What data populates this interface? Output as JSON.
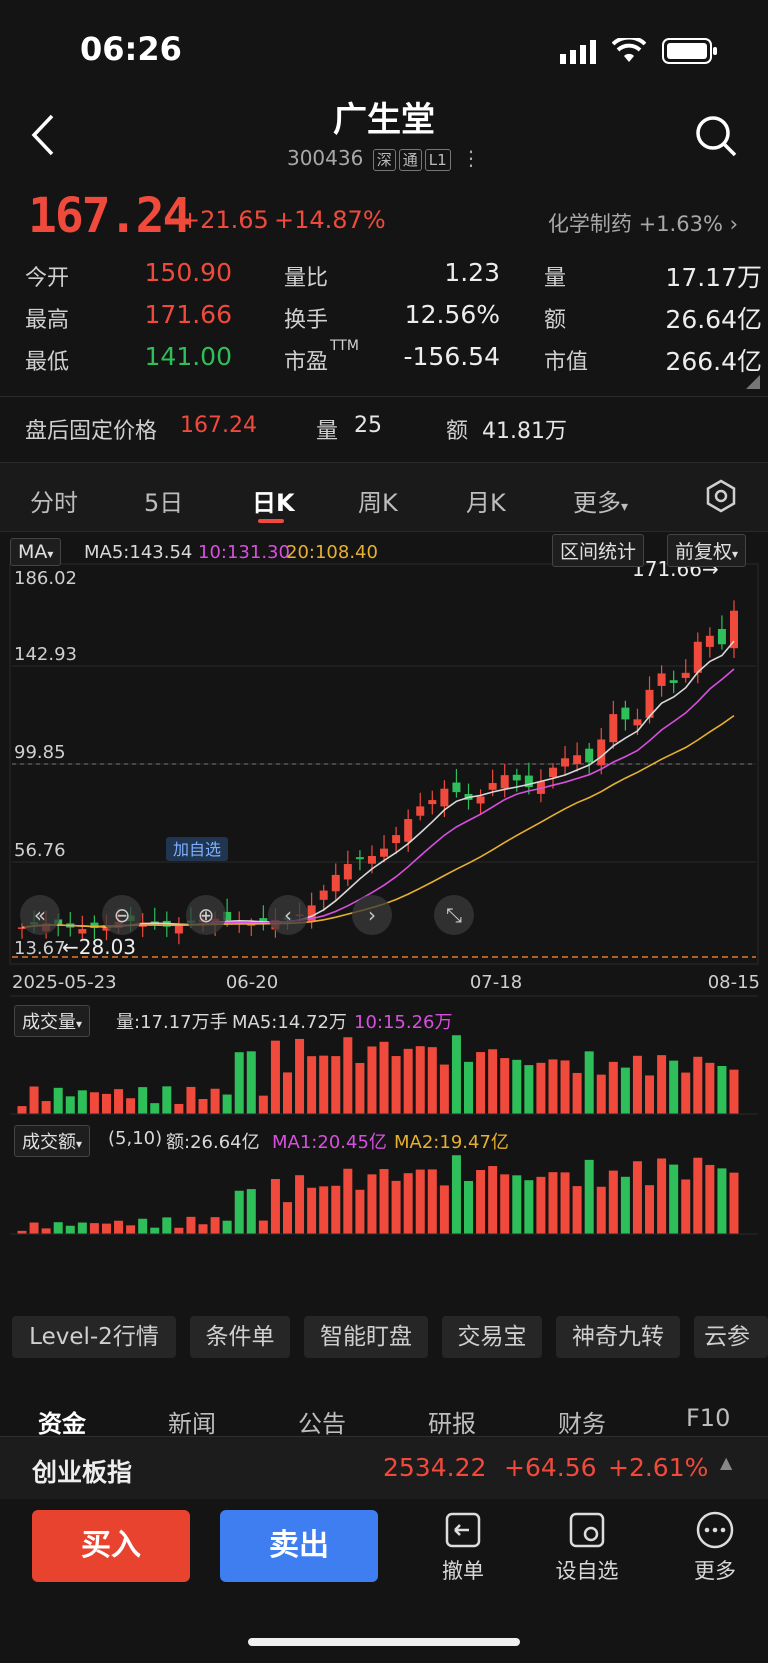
{
  "status": {
    "time": "06:26"
  },
  "header": {
    "name": "广生堂",
    "code": "300436",
    "tags": [
      "深",
      "通",
      "L1"
    ]
  },
  "quote": {
    "price": "167.24",
    "change": "+21.65",
    "change_pct": "+14.87%",
    "sector": "化学制药",
    "sector_pct": "+1.63%"
  },
  "stats": [
    {
      "label": "今开",
      "value": "150.90",
      "color": "#f04a3c"
    },
    {
      "label": "量比",
      "value": "1.23",
      "color": "#ededed"
    },
    {
      "label": "量",
      "value": "17.17万",
      "color": "#ededed"
    },
    {
      "label": "最高",
      "value": "171.66",
      "color": "#f04a3c"
    },
    {
      "label": "换手",
      "value": "12.56%",
      "color": "#ededed"
    },
    {
      "label": "额",
      "value": "26.64亿",
      "color": "#ededed"
    },
    {
      "label": "最低",
      "value": "141.00",
      "color": "#2fbf5a"
    },
    {
      "label": "市盈",
      "label_sup": "TTM",
      "value": "-156.54",
      "color": "#ededed"
    },
    {
      "label": "市值",
      "value": "266.4亿",
      "color": "#ededed"
    }
  ],
  "after_hours": {
    "label": "盘后固定价格",
    "price": "167.24",
    "vol_label": "量",
    "vol": "25",
    "amt_label": "额",
    "amt": "41.81万"
  },
  "period_tabs": [
    "分时",
    "5日",
    "日K",
    "周K",
    "月K",
    "更多"
  ],
  "active_tab": "日K",
  "kline": {
    "ma_selector": "MA",
    "ma5": "MA5:143.54",
    "ma10": "10:131.30",
    "ma20": "20:108.40",
    "interval_btn": "区间统计",
    "adjust_btn": "前复权",
    "y_ticks": [
      "186.02",
      "142.93",
      "99.85",
      "56.76",
      "13.67"
    ],
    "low_marker": "←28.03",
    "high_marker": "171.66",
    "x_dates": [
      "2025-05-23",
      "06-20",
      "07-18",
      "08-15"
    ],
    "add_watch_label": "加自选"
  },
  "volume_panel": {
    "selector": "成交量",
    "vol": "量:17.17万手",
    "ma5": "MA5:14.72万",
    "ma10": "10:15.26万"
  },
  "amount_panel": {
    "selector": "成交额",
    "params": "(5,10)",
    "amt": "额:26.64亿",
    "ma1": "MA1:20.45亿",
    "ma2": "MA2:19.47亿"
  },
  "function_buttons": [
    "Level-2行情",
    "条件单",
    "智能盯盘",
    "交易宝",
    "神奇九转",
    "云参"
  ],
  "news_tabs": [
    "资金",
    "新闻",
    "公告",
    "研报",
    "财务",
    "F10"
  ],
  "index_bar": {
    "name": "创业板指",
    "value": "2534.22",
    "change": "+64.56",
    "pct": "+2.61%"
  },
  "bottom": {
    "buy": "买入",
    "sell": "卖出",
    "cancel": "撤单",
    "watch": "设自选",
    "more": "更多"
  },
  "colors": {
    "up": "#f04a3c",
    "down": "#2fbf5a",
    "ma5": "#d8d8d8",
    "ma10": "#d84fe0",
    "ma20": "#e6b030",
    "buy": "#e8432f",
    "sell": "#3e7ef0"
  }
}
